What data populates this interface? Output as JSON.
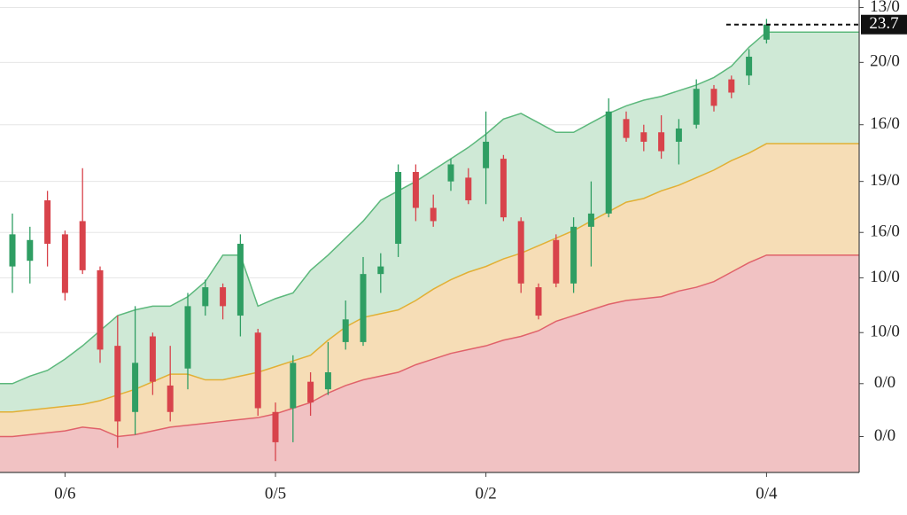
{
  "chart_data": {
    "type": "candlestick",
    "categories": [
      null,
      null,
      null,
      "0/6",
      null,
      null,
      null,
      null,
      null,
      null,
      null,
      null,
      null,
      null,
      null,
      "0/5",
      null,
      null,
      null,
      null,
      null,
      null,
      null,
      null,
      null,
      null,
      null,
      "0/2",
      null,
      null,
      null,
      null,
      null,
      null,
      null,
      null,
      null,
      null,
      null,
      null,
      null,
      null,
      null,
      "0/4"
    ],
    "open": [
      10.9,
      11.2,
      14.4,
      12.6,
      13.3,
      10.7,
      6.7,
      3.2,
      7.2,
      4.6,
      5.5,
      8.8,
      9.8,
      8.3,
      7.4,
      3.2,
      3.4,
      4.8,
      4.4,
      6.9,
      6.9,
      10.5,
      12.1,
      15.9,
      14.0,
      15.4,
      15.6,
      16.1,
      16.6,
      13.3,
      9.8,
      12.3,
      10.0,
      13.0,
      13.7,
      18.7,
      18.0,
      18.0,
      17.5,
      18.4,
      20.3,
      20.8,
      21.0,
      22.9
    ],
    "high": [
      13.7,
      13.0,
      14.9,
      12.8,
      16.1,
      10.9,
      8.3,
      8.8,
      7.4,
      6.7,
      9.5,
      10.2,
      10.0,
      12.6,
      7.6,
      3.7,
      6.2,
      5.3,
      6.9,
      9.1,
      11.4,
      11.6,
      16.3,
      16.3,
      14.7,
      16.6,
      16.1,
      19.1,
      16.8,
      13.5,
      10.0,
      12.6,
      13.5,
      15.4,
      19.8,
      19.1,
      18.4,
      18.9,
      18.7,
      20.8,
      20.5,
      21.0,
      22.4,
      24.0
    ],
    "low": [
      9.5,
      10.0,
      10.9,
      9.1,
      10.5,
      5.8,
      1.3,
      2.0,
      4.1,
      2.7,
      4.4,
      8.3,
      8.1,
      7.2,
      3.0,
      0.6,
      1.6,
      3.0,
      4.1,
      6.5,
      6.7,
      9.5,
      11.4,
      13.3,
      13.0,
      14.9,
      14.2,
      14.2,
      13.3,
      9.5,
      8.1,
      9.8,
      9.5,
      10.9,
      13.5,
      17.5,
      17.0,
      16.6,
      16.3,
      18.2,
      19.1,
      19.8,
      20.5,
      22.7
    ],
    "close": [
      12.6,
      12.3,
      12.1,
      9.5,
      10.7,
      6.5,
      2.7,
      5.8,
      4.8,
      3.2,
      8.8,
      9.8,
      8.8,
      12.1,
      3.4,
      1.6,
      5.8,
      3.7,
      5.3,
      8.1,
      10.5,
      10.9,
      15.9,
      14.0,
      13.3,
      16.3,
      14.4,
      17.5,
      13.5,
      10.0,
      8.3,
      10.0,
      13.0,
      13.7,
      19.1,
      17.7,
      17.5,
      17.0,
      18.2,
      20.3,
      19.4,
      20.1,
      22.0,
      23.7
    ],
    "up_color": "#2f9e63",
    "down_color": "#d8434b",
    "bands": [
      {
        "color": "#cfe9d6",
        "line_color": "#5cb87c",
        "values": [
          4.7,
          5.1,
          5.4,
          6.0,
          6.7,
          7.5,
          8.3,
          8.6,
          8.8,
          8.8,
          9.3,
          10.1,
          11.5,
          11.5,
          8.8,
          9.2,
          9.5,
          10.7,
          11.5,
          12.4,
          13.3,
          14.4,
          14.9,
          15.4,
          16.0,
          16.6,
          17.2,
          17.9,
          18.7,
          19.0,
          18.5,
          18.0,
          18.0,
          18.5,
          19.0,
          19.4,
          19.7,
          19.9,
          20.2,
          20.5,
          20.9,
          21.5,
          22.5,
          23.3
        ]
      },
      {
        "color": "#f6ddb6",
        "line_color": "#e1b035",
        "values": [
          3.2,
          3.3,
          3.4,
          3.5,
          3.6,
          3.8,
          4.1,
          4.4,
          4.8,
          5.2,
          5.2,
          4.9,
          4.9,
          5.1,
          5.3,
          5.6,
          5.9,
          6.2,
          7.0,
          7.7,
          8.2,
          8.4,
          8.6,
          9.1,
          9.7,
          10.2,
          10.6,
          10.9,
          11.3,
          11.6,
          12.0,
          12.4,
          12.8,
          13.3,
          13.8,
          14.3,
          14.5,
          14.9,
          15.2,
          15.6,
          16.0,
          16.5,
          16.9,
          17.4
        ]
      },
      {
        "color": "#f1c2c3",
        "line_color": "#e0626a",
        "values": [
          1.9,
          2.0,
          2.1,
          2.2,
          2.4,
          2.3,
          1.9,
          2.0,
          2.2,
          2.4,
          2.5,
          2.6,
          2.7,
          2.8,
          2.9,
          3.1,
          3.4,
          3.7,
          4.2,
          4.6,
          4.9,
          5.1,
          5.3,
          5.7,
          6.0,
          6.3,
          6.5,
          6.7,
          7.0,
          7.2,
          7.5,
          8.0,
          8.3,
          8.6,
          8.9,
          9.1,
          9.2,
          9.3,
          9.6,
          9.8,
          10.1,
          10.6,
          11.1,
          11.5
        ]
      }
    ],
    "ylim": [
      0,
      25
    ],
    "yticks": [
      {
        "value": 24.6,
        "label": "13/0"
      },
      {
        "value": 21.7,
        "label": "20/0"
      },
      {
        "value": 18.4,
        "label": "16/0"
      },
      {
        "value": 15.4,
        "label": "19/0"
      },
      {
        "value": 12.7,
        "label": "16/0"
      },
      {
        "value": 10.3,
        "label": "10/0"
      },
      {
        "value": 7.4,
        "label": "10/0"
      },
      {
        "value": 4.7,
        "label": "0/0"
      },
      {
        "value": 1.9,
        "label": "0/0"
      }
    ],
    "grid": true
  }
}
